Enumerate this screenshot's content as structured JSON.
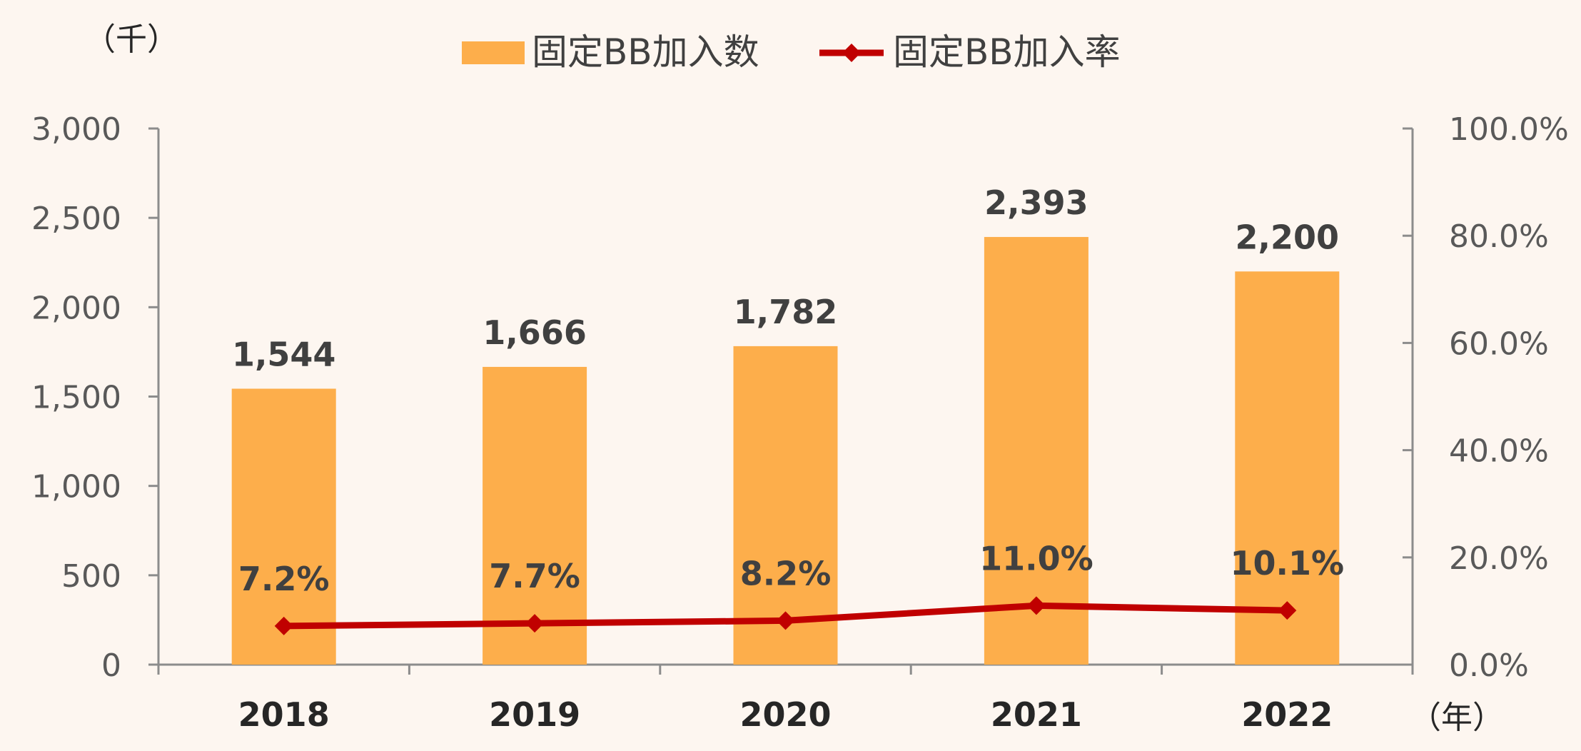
{
  "chart_data": {
    "type": "bar",
    "categories": [
      "2018",
      "2019",
      "2020",
      "2021",
      "2022"
    ],
    "series": [
      {
        "name": "固定BB加入数",
        "type": "bar",
        "axis": "left",
        "color": "#fdae4b",
        "values": [
          1544,
          1666,
          1782,
          2393,
          2200
        ],
        "labels": [
          "1,544",
          "1,666",
          "1,782",
          "2,393",
          "2,200"
        ]
      },
      {
        "name": "固定BB加入率",
        "type": "line",
        "axis": "right",
        "color": "#c00000",
        "marker": "diamond",
        "values": [
          7.2,
          7.7,
          8.2,
          11.0,
          10.1
        ],
        "labels": [
          "7.2%",
          "7.7%",
          "8.2%",
          "11.0%",
          "10.1%"
        ]
      }
    ],
    "y_left": {
      "unit_label": "（千）",
      "ylim": [
        0,
        3000
      ],
      "ticks": [
        0,
        500,
        1000,
        1500,
        2000,
        2500,
        3000
      ],
      "tick_labels": [
        "0",
        "500",
        "1,000",
        "1,500",
        "2,000",
        "2,500",
        "3,000"
      ]
    },
    "y_right": {
      "ylim": [
        0,
        100
      ],
      "ticks": [
        0,
        20,
        40,
        60,
        80,
        100
      ],
      "tick_labels": [
        "0.0%",
        "20.0%",
        "40.0%",
        "60.0%",
        "80.0%",
        "100.0%"
      ]
    },
    "x_unit_label": "（年）",
    "legend_position": "top",
    "grid": false
  }
}
